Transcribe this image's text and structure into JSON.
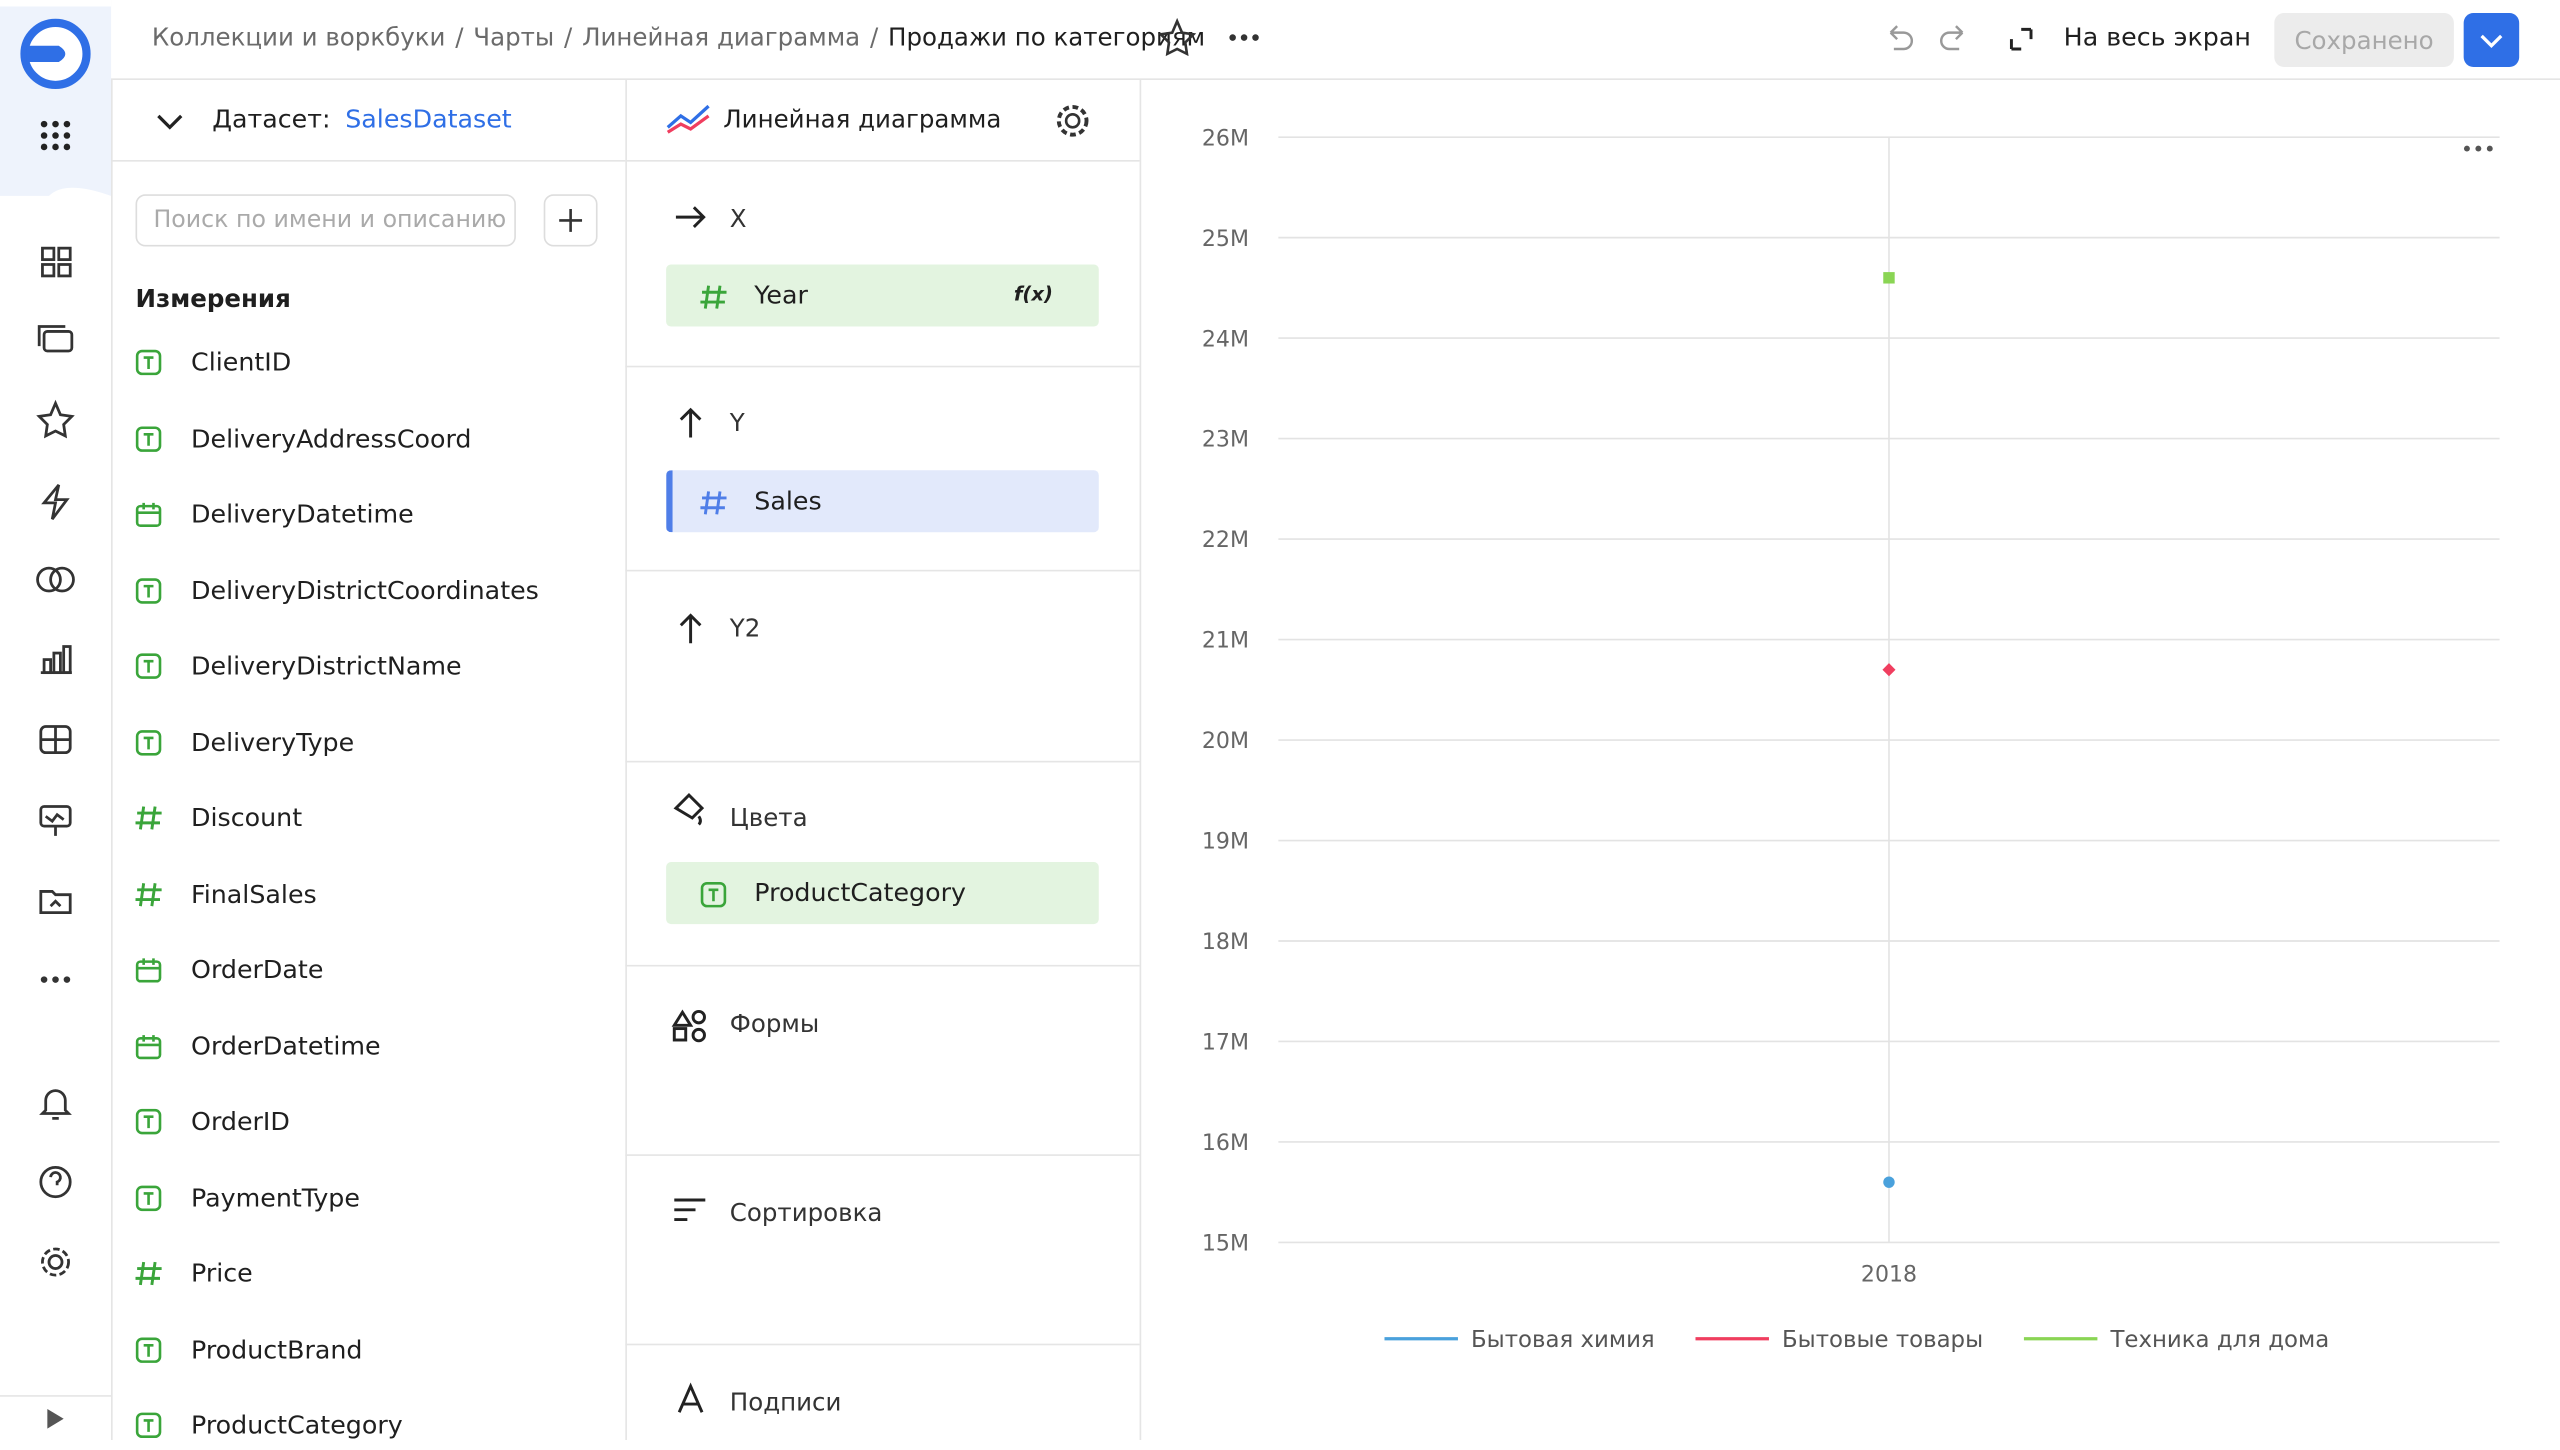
{
  "header": {
    "breadcrumbs": [
      "Коллекции и воркбуки",
      "Чарты",
      "Линейная диаграмма"
    ],
    "separator": "/",
    "title": "Продажи по категориям",
    "fullscreen": "На весь экран",
    "saved": "Сохранено"
  },
  "dataset": {
    "label": "Датасет:",
    "name": "SalesDataset",
    "search_placeholder": "Поиск по имени и описанию",
    "dimensions_title": "Измерения",
    "fields": [
      {
        "name": "ClientID",
        "kind": "text"
      },
      {
        "name": "DeliveryAddressCoord",
        "kind": "text"
      },
      {
        "name": "DeliveryDatetime",
        "kind": "date"
      },
      {
        "name": "DeliveryDistrictCoordinates",
        "kind": "text"
      },
      {
        "name": "DeliveryDistrictName",
        "kind": "text"
      },
      {
        "name": "DeliveryType",
        "kind": "text"
      },
      {
        "name": "Discount",
        "kind": "number"
      },
      {
        "name": "FinalSales",
        "kind": "number"
      },
      {
        "name": "OrderDate",
        "kind": "date"
      },
      {
        "name": "OrderDatetime",
        "kind": "date"
      },
      {
        "name": "OrderID",
        "kind": "text"
      },
      {
        "name": "PaymentType",
        "kind": "text"
      },
      {
        "name": "Price",
        "kind": "number"
      },
      {
        "name": "ProductBrand",
        "kind": "text"
      },
      {
        "name": "ProductCategory",
        "kind": "text"
      }
    ]
  },
  "visualization": {
    "name": "Линейная диаграмма",
    "sections": {
      "x": "X",
      "x_field": "Year",
      "x_formula": "f(x)",
      "y": "Y",
      "y_field": "Sales",
      "y2": "Y2",
      "colors": "Цвета",
      "colors_field": "ProductCategory",
      "shapes": "Формы",
      "sorting": "Сортировка",
      "labels": "Подписи"
    }
  },
  "chart_data": {
    "type": "line",
    "categories": [
      "2018"
    ],
    "series": [
      {
        "name": "Бытовая химия",
        "color": "#4aa1dc",
        "marker": "circle",
        "values": [
          15600000
        ]
      },
      {
        "name": "Бытовые товары",
        "color": "#f03e5f",
        "marker": "diamond",
        "values": [
          20700000
        ]
      },
      {
        "name": "Техника для дома",
        "color": "#8ad554",
        "marker": "square",
        "values": [
          24600000
        ]
      }
    ],
    "ylim": [
      15000000,
      26000000
    ],
    "yticks": [
      {
        "value": 15000000,
        "label": "15M"
      },
      {
        "value": 16000000,
        "label": "16M"
      },
      {
        "value": 17000000,
        "label": "17M"
      },
      {
        "value": 18000000,
        "label": "18M"
      },
      {
        "value": 19000000,
        "label": "19M"
      },
      {
        "value": 20000000,
        "label": "20M"
      },
      {
        "value": 21000000,
        "label": "21M"
      },
      {
        "value": 22000000,
        "label": "22M"
      },
      {
        "value": 23000000,
        "label": "23M"
      },
      {
        "value": 24000000,
        "label": "24M"
      },
      {
        "value": 25000000,
        "label": "25M"
      },
      {
        "value": 26000000,
        "label": "26M"
      }
    ],
    "grid": true
  }
}
